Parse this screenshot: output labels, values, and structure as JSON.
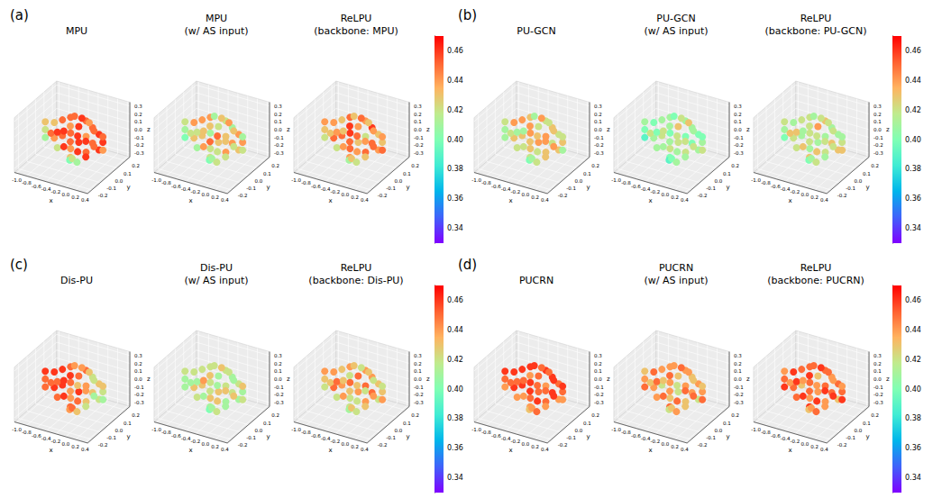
{
  "chart_data": {
    "type": "scatter3d",
    "x_label": "x",
    "y_label": "y",
    "z_label": "z",
    "xlim": [
      -1.05,
      0.45
    ],
    "xticks": [
      {
        "value": -1,
        "label": "-1.0"
      },
      -0.8,
      -0.6,
      -0.4,
      -0.2,
      {
        "value": 0,
        "label": "0.0"
      },
      0.2,
      0.4
    ],
    "ylim": [
      -0.25,
      0.25
    ],
    "yticks": [
      -0.2,
      -0.1,
      {
        "value": 0,
        "label": "0.0"
      },
      0.1,
      0.2
    ],
    "zlim": [
      -0.35,
      0.35
    ],
    "zticks": [
      -0.3,
      -0.2,
      -0.1,
      {
        "value": 0,
        "label": "0.0"
      },
      0.1,
      0.2,
      0.3
    ],
    "colorbar": {
      "range": [
        0.33,
        0.47
      ],
      "ticks": [
        0.34,
        0.36,
        0.38,
        {
          "value": 0.4,
          "label": "0.40"
        },
        0.42,
        0.44,
        0.46
      ]
    },
    "fish_points": {
      "x": [
        -0.85,
        -0.85,
        -0.85,
        -0.7,
        -0.7,
        -0.7,
        -0.55,
        -0.55,
        -0.55,
        -0.55,
        -0.4,
        -0.4,
        -0.4,
        -0.4,
        -0.4,
        -0.25,
        -0.25,
        -0.25,
        -0.25,
        -0.25,
        -0.25,
        -0.1,
        -0.1,
        -0.1,
        -0.1,
        -0.1,
        -0.1,
        0.05,
        0.05,
        0.05,
        0.05,
        0.05,
        0.2,
        0.2,
        0.2,
        0.2,
        0.33,
        0.33,
        0.33,
        -0.35,
        -0.3,
        -0.2
      ],
      "y": [
        0,
        0,
        0,
        0.02,
        -0.02,
        0.02,
        -0.03,
        0.03,
        -0.03,
        0.03,
        0.04,
        -0.04,
        0.04,
        -0.04,
        0.04,
        -0.05,
        0.05,
        -0.05,
        0.05,
        -0.05,
        0,
        0.05,
        -0.05,
        0.05,
        -0.05,
        0.05,
        0,
        -0.04,
        0.04,
        -0.04,
        0.04,
        0,
        0.03,
        -0.03,
        0.03,
        -0.03,
        0,
        0,
        0,
        0,
        0,
        0
      ],
      "z": [
        0,
        0.1,
        -0.1,
        -0.1,
        0,
        0.1,
        -0.15,
        -0.05,
        0.05,
        0.15,
        -0.2,
        -0.1,
        0,
        0.1,
        0.2,
        -0.2,
        -0.1,
        0,
        0.1,
        0.2,
        0.28,
        -0.2,
        -0.1,
        0,
        0.1,
        0.2,
        0.28,
        -0.15,
        -0.05,
        0.05,
        0.15,
        0.25,
        -0.1,
        0,
        0.1,
        0.2,
        -0.05,
        0.05,
        0.12,
        -0.3,
        -0.27,
        -0.3
      ]
    },
    "groups": [
      {
        "label": "(a)",
        "panels": [
          {
            "title": "MPU",
            "values": [
              0.42,
              0.43,
              0.41,
              0.44,
              0.45,
              0.43,
              0.42,
              0.45,
              0.46,
              0.45,
              0.44,
              0.46,
              0.45,
              0.46,
              0.45,
              0.43,
              0.46,
              0.45,
              0.46,
              0.44,
              0.45,
              0.45,
              0.46,
              0.44,
              0.46,
              0.45,
              0.46,
              0.46,
              0.45,
              0.46,
              0.45,
              0.44,
              0.46,
              0.45,
              0.46,
              0.45,
              0.44,
              0.46,
              0.45,
              0.4,
              0.42,
              0.41
            ]
          },
          {
            "title": "MPU (w/ AS input)",
            "values": [
              0.41,
              0.42,
              0.4,
              0.43,
              0.42,
              0.44,
              0.41,
              0.43,
              0.42,
              0.44,
              0.42,
              0.44,
              0.41,
              0.43,
              0.44,
              0.42,
              0.43,
              0.45,
              0.42,
              0.43,
              0.41,
              0.44,
              0.42,
              0.43,
              0.45,
              0.42,
              0.43,
              0.42,
              0.44,
              0.43,
              0.41,
              0.44,
              0.43,
              0.42,
              0.44,
              0.43,
              0.42,
              0.44,
              0.41,
              0.4,
              0.41,
              0.42
            ]
          },
          {
            "title": "ReLPU (backbone: MPU)",
            "values": [
              0.43,
              0.44,
              0.42,
              0.45,
              0.43,
              0.44,
              0.42,
              0.45,
              0.44,
              0.43,
              0.45,
              0.44,
              0.46,
              0.43,
              0.45,
              0.44,
              0.43,
              0.45,
              0.44,
              0.46,
              0.43,
              0.45,
              0.44,
              0.42,
              0.45,
              0.44,
              0.45,
              0.43,
              0.45,
              0.44,
              0.46,
              0.43,
              0.44,
              0.45,
              0.43,
              0.44,
              0.45,
              0.43,
              0.44,
              0.41,
              0.43,
              0.42
            ]
          }
        ]
      },
      {
        "label": "(b)",
        "panels": [
          {
            "title": "PU-GCN",
            "values": [
              0.41,
              0.42,
              0.41,
              0.43,
              0.42,
              0.44,
              0.42,
              0.43,
              0.41,
              0.44,
              0.43,
              0.42,
              0.44,
              0.41,
              0.43,
              0.42,
              0.44,
              0.43,
              0.42,
              0.44,
              0.41,
              0.43,
              0.42,
              0.44,
              0.43,
              0.42,
              0.44,
              0.43,
              0.42,
              0.44,
              0.43,
              0.42,
              0.43,
              0.44,
              0.42,
              0.43,
              0.41,
              0.43,
              0.42,
              0.4,
              0.41,
              0.42
            ]
          },
          {
            "title": "PU-GCN (w/ AS input)",
            "values": [
              0.4,
              0.41,
              0.39,
              0.41,
              0.42,
              0.4,
              0.41,
              0.42,
              0.4,
              0.41,
              0.42,
              0.41,
              0.4,
              0.42,
              0.41,
              0.4,
              0.42,
              0.41,
              0.43,
              0.41,
              0.4,
              0.42,
              0.41,
              0.4,
              0.42,
              0.41,
              0.42,
              0.41,
              0.4,
              0.42,
              0.41,
              0.43,
              0.41,
              0.42,
              0.4,
              0.41,
              0.42,
              0.41,
              0.4,
              0.39,
              0.4,
              0.41
            ]
          },
          {
            "title": "ReLPU (backbone: PU-GCN)",
            "values": [
              0.41,
              0.42,
              0.4,
              0.42,
              0.43,
              0.41,
              0.42,
              0.41,
              0.43,
              0.42,
              0.41,
              0.43,
              0.42,
              0.41,
              0.42,
              0.43,
              0.41,
              0.42,
              0.44,
              0.42,
              0.41,
              0.42,
              0.43,
              0.41,
              0.42,
              0.43,
              0.42,
              0.41,
              0.43,
              0.42,
              0.41,
              0.42,
              0.43,
              0.42,
              0.41,
              0.42,
              0.43,
              0.42,
              0.41,
              0.4,
              0.41,
              0.42
            ]
          }
        ]
      },
      {
        "label": "(c)",
        "panels": [
          {
            "title": "Dis-PU",
            "values": [
              0.45,
              0.46,
              0.45,
              0.46,
              0.45,
              0.46,
              0.45,
              0.46,
              0.45,
              0.46,
              0.44,
              0.46,
              0.45,
              0.46,
              0.45,
              0.45,
              0.46,
              0.44,
              0.45,
              0.46,
              0.44,
              0.43,
              0.45,
              0.44,
              0.43,
              0.45,
              0.44,
              0.42,
              0.43,
              0.44,
              0.42,
              0.43,
              0.42,
              0.41,
              0.43,
              0.42,
              0.41,
              0.42,
              0.43,
              0.44,
              0.45,
              0.43
            ]
          },
          {
            "title": "Dis-PU (w/ AS input)",
            "values": [
              0.41,
              0.42,
              0.41,
              0.43,
              0.41,
              0.42,
              0.42,
              0.43,
              0.41,
              0.42,
              0.43,
              0.41,
              0.42,
              0.44,
              0.42,
              0.41,
              0.43,
              0.42,
              0.41,
              0.43,
              0.42,
              0.41,
              0.43,
              0.42,
              0.41,
              0.42,
              0.43,
              0.41,
              0.42,
              0.43,
              0.41,
              0.42,
              0.41,
              0.43,
              0.42,
              0.41,
              0.42,
              0.41,
              0.43,
              0.4,
              0.41,
              0.42
            ]
          },
          {
            "title": "ReLPU (backbone: Dis-PU)",
            "values": [
              0.43,
              0.44,
              0.42,
              0.45,
              0.43,
              0.44,
              0.42,
              0.44,
              0.45,
              0.43,
              0.42,
              0.44,
              0.45,
              0.43,
              0.44,
              0.42,
              0.44,
              0.43,
              0.45,
              0.42,
              0.43,
              0.44,
              0.42,
              0.45,
              0.43,
              0.44,
              0.42,
              0.43,
              0.45,
              0.42,
              0.44,
              0.43,
              0.42,
              0.44,
              0.43,
              0.42,
              0.44,
              0.43,
              0.42,
              0.41,
              0.43,
              0.42
            ]
          }
        ]
      },
      {
        "label": "(d)",
        "panels": [
          {
            "title": "PUCRN",
            "values": [
              0.45,
              0.46,
              0.44,
              0.46,
              0.45,
              0.46,
              0.44,
              0.46,
              0.45,
              0.46,
              0.45,
              0.44,
              0.46,
              0.45,
              0.46,
              0.44,
              0.45,
              0.46,
              0.45,
              0.44,
              0.46,
              0.45,
              0.46,
              0.44,
              0.45,
              0.46,
              0.45,
              0.44,
              0.46,
              0.45,
              0.46,
              0.45,
              0.44,
              0.46,
              0.45,
              0.46,
              0.44,
              0.45,
              0.46,
              0.43,
              0.44,
              0.45
            ]
          },
          {
            "title": "PUCRN (w/ AS input)",
            "values": [
              0.44,
              0.43,
              0.45,
              0.44,
              0.43,
              0.45,
              0.44,
              0.42,
              0.45,
              0.44,
              0.43,
              0.45,
              0.44,
              0.43,
              0.44,
              0.45,
              0.42,
              0.44,
              0.43,
              0.45,
              0.44,
              0.43,
              0.45,
              0.44,
              0.42,
              0.44,
              0.45,
              0.43,
              0.44,
              0.45,
              0.43,
              0.44,
              0.42,
              0.45,
              0.44,
              0.43,
              0.45,
              0.44,
              0.43,
              0.42,
              0.43,
              0.44
            ]
          },
          {
            "title": "ReLPU (backbone: PUCRN)",
            "values": [
              0.45,
              0.44,
              0.46,
              0.45,
              0.44,
              0.46,
              0.45,
              0.43,
              0.46,
              0.45,
              0.44,
              0.46,
              0.45,
              0.44,
              0.45,
              0.46,
              0.44,
              0.45,
              0.43,
              0.46,
              0.45,
              0.44,
              0.46,
              0.45,
              0.44,
              0.45,
              0.46,
              0.44,
              0.45,
              0.46,
              0.44,
              0.45,
              0.43,
              0.46,
              0.45,
              0.44,
              0.46,
              0.45,
              0.44,
              0.43,
              0.44,
              0.45
            ]
          }
        ]
      }
    ]
  }
}
